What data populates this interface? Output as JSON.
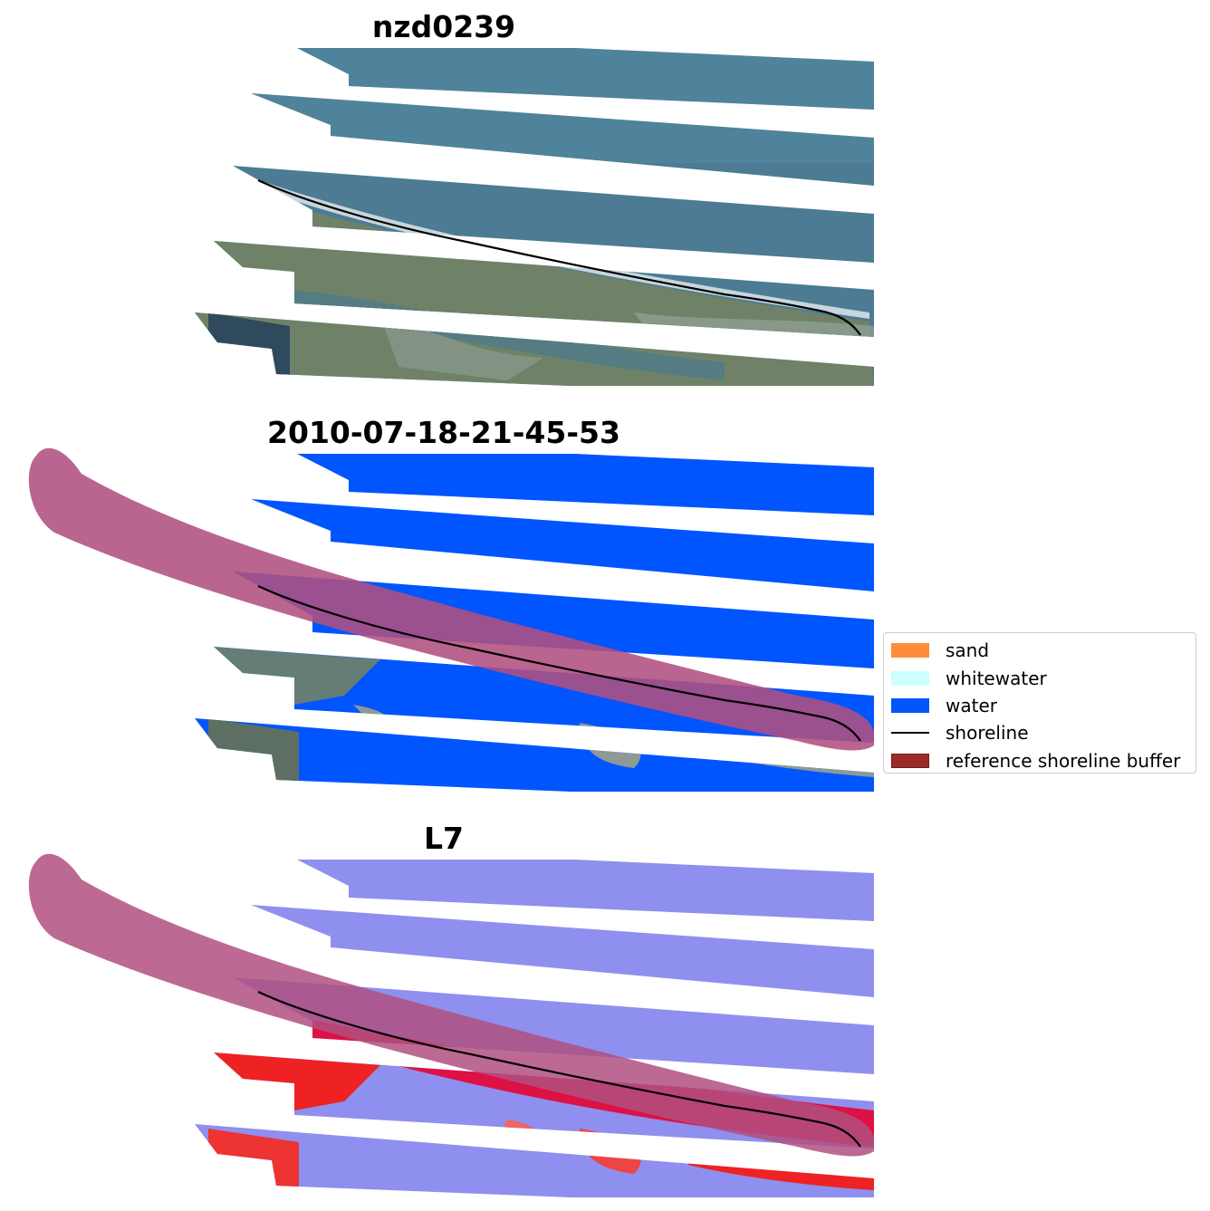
{
  "panels": [
    {
      "title": "nzd0239",
      "style": "rgb"
    },
    {
      "title": "2010-07-18-21-45-53",
      "style": "classified"
    },
    {
      "title": "L7",
      "style": "index"
    }
  ],
  "legend": {
    "items": [
      {
        "label": "sand",
        "kind": "patch",
        "color": "#ff8c3a"
      },
      {
        "label": "whitewater",
        "kind": "patch",
        "color": "#ccffff"
      },
      {
        "label": "water",
        "kind": "patch",
        "color": "#0055ff"
      },
      {
        "label": "shoreline",
        "kind": "line",
        "color": "#000000"
      },
      {
        "label": "reference shoreline buffer",
        "kind": "patch",
        "color": "#9b2a2a",
        "edge": "#7a1a1a"
      }
    ]
  },
  "colors": {
    "sea_rgb": "#4f7f95",
    "land_rgb": "#6f8268",
    "water_class": "#0055ff",
    "buffer": "#b05080",
    "index_blue": "#8888ee",
    "index_red": "#ee2222",
    "shoreline": "#000000"
  }
}
